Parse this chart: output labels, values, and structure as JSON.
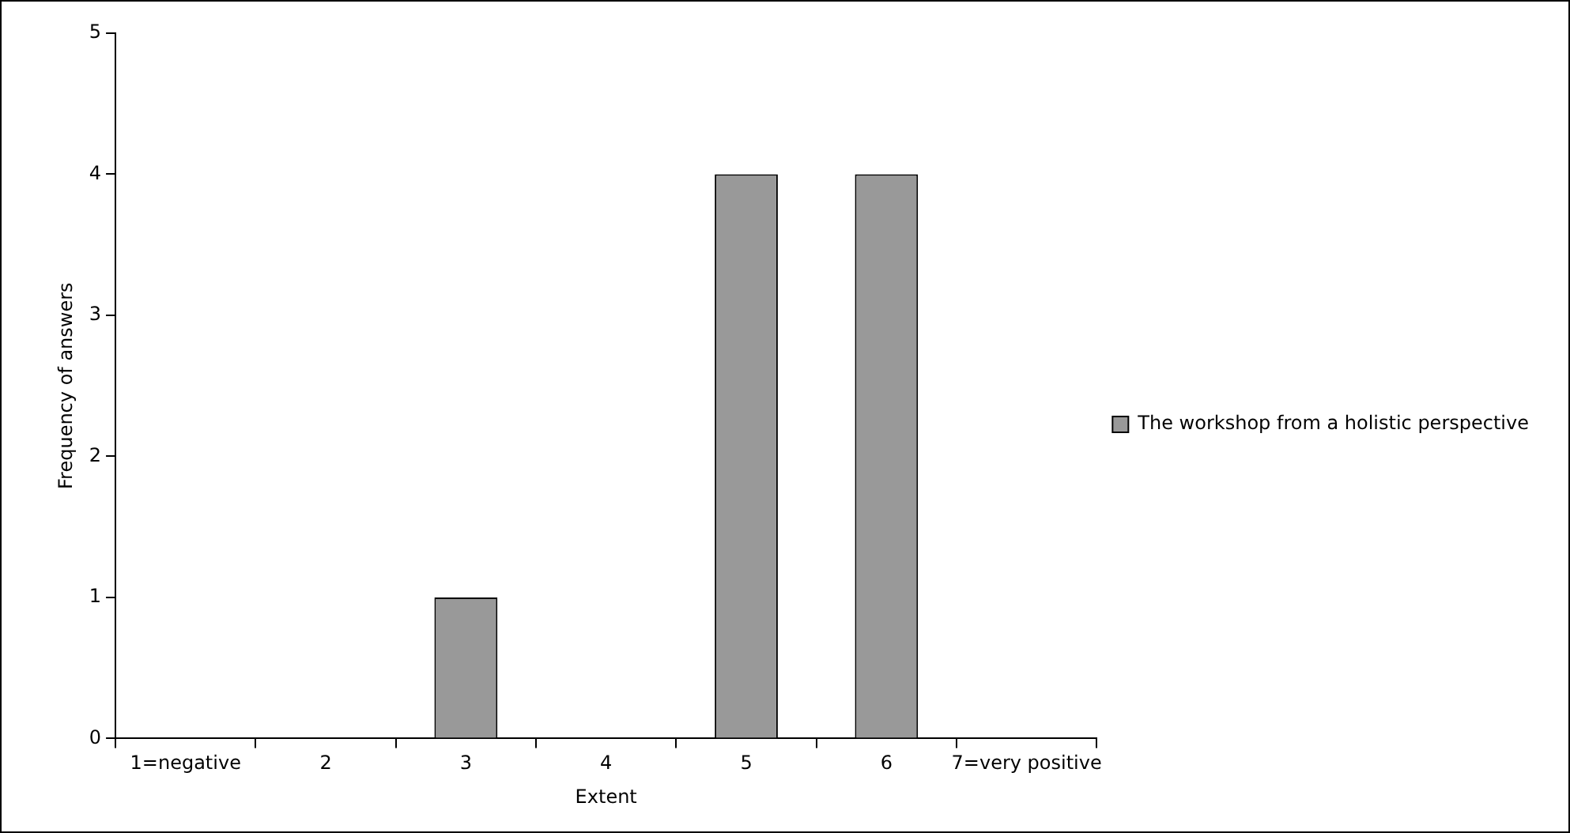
{
  "chart_data": {
    "type": "bar",
    "xlabel": "Extent",
    "ylabel": "Frequency of answers",
    "categories": [
      "1=negative",
      "2",
      "3",
      "4",
      "5",
      "6",
      "7=very positive"
    ],
    "series": [
      {
        "name": "The workshop from a holistic perspective",
        "color": "#999999",
        "values": [
          0,
          0,
          1,
          0,
          4,
          4,
          0
        ]
      }
    ],
    "ylim": [
      0,
      5
    ],
    "yticks": [
      0,
      1,
      2,
      3,
      4,
      5
    ],
    "grid": false,
    "legend": "right"
  }
}
